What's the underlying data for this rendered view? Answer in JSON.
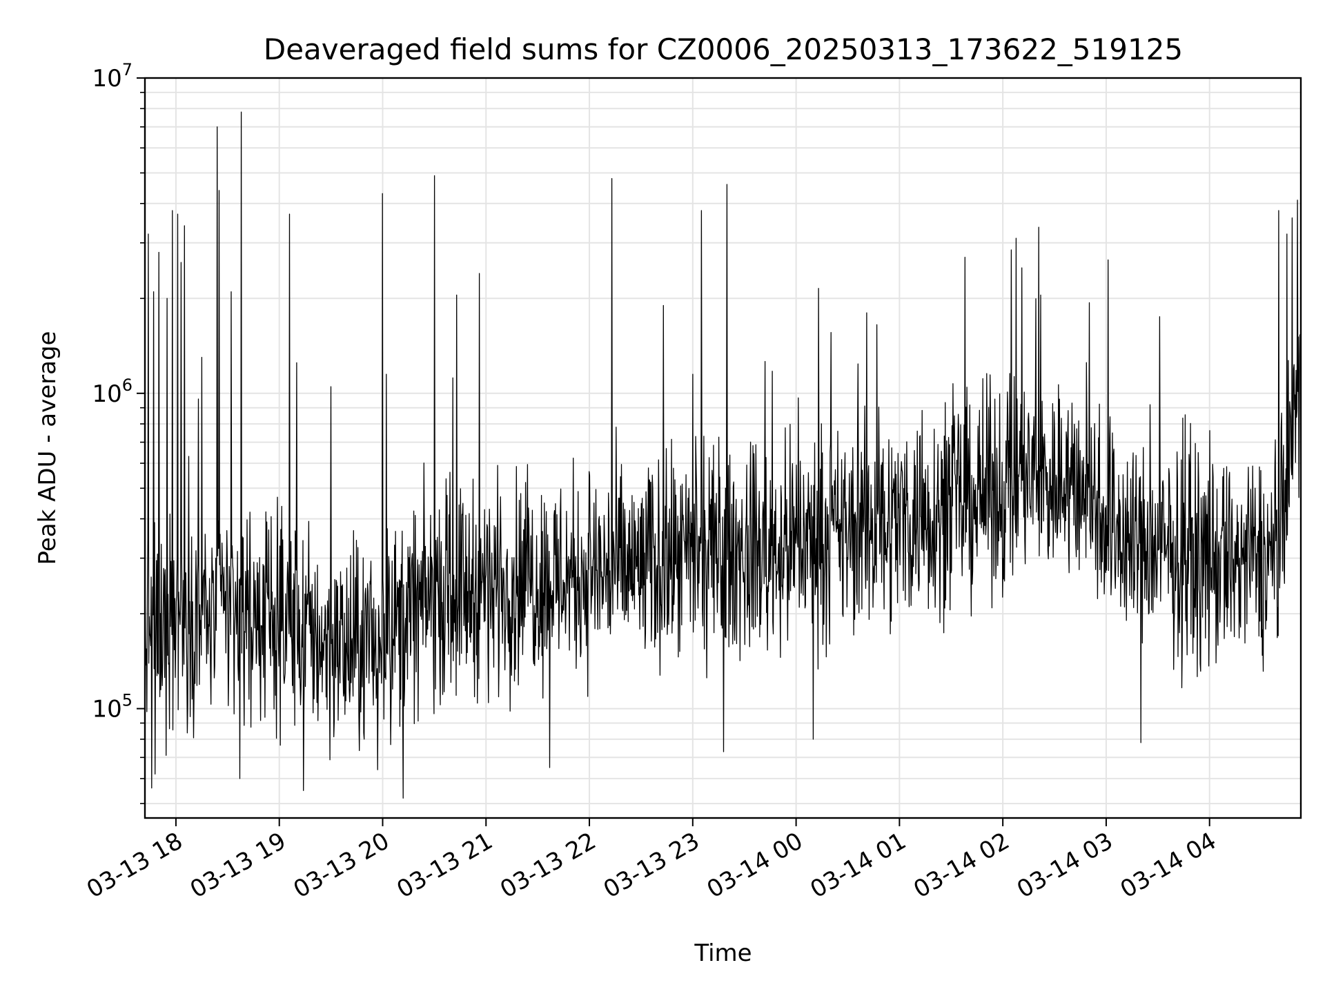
{
  "chart_data": {
    "type": "line",
    "title": "Deaveraged field sums for CZ0006_20250313_173622_519125",
    "xlabel": "Time",
    "ylabel": "Peak ADU - average",
    "yscale": "log",
    "ylim": [
      45000,
      10000000
    ],
    "xlim": [
      "2025-03-13T17:42",
      "2025-03-14T04:53"
    ],
    "grid": true,
    "line_color": "#000000",
    "x_ticks": [
      {
        "t": "2025-03-13T18:00",
        "label": "03-13 18"
      },
      {
        "t": "2025-03-13T19:00",
        "label": "03-13 19"
      },
      {
        "t": "2025-03-13T20:00",
        "label": "03-13 20"
      },
      {
        "t": "2025-03-13T21:00",
        "label": "03-13 21"
      },
      {
        "t": "2025-03-13T22:00",
        "label": "03-13 22"
      },
      {
        "t": "2025-03-13T23:00",
        "label": "03-13 23"
      },
      {
        "t": "2025-03-14T00:00",
        "label": "03-14 00"
      },
      {
        "t": "2025-03-14T01:00",
        "label": "03-14 01"
      },
      {
        "t": "2025-03-14T02:00",
        "label": "03-14 02"
      },
      {
        "t": "2025-03-14T03:00",
        "label": "03-14 03"
      },
      {
        "t": "2025-03-14T04:00",
        "label": "03-14 04"
      }
    ],
    "y_ticks": [
      {
        "v": 100000,
        "base": "10",
        "exp": "5"
      },
      {
        "v": 1000000,
        "base": "10",
        "exp": "6"
      },
      {
        "v": 10000000,
        "base": "10",
        "exp": "7"
      }
    ],
    "baseline": [
      {
        "t": "2025-03-13T17:42",
        "v": 180000
      },
      {
        "t": "2025-03-13T18:30",
        "v": 210000
      },
      {
        "t": "2025-03-13T19:00",
        "v": 190000
      },
      {
        "t": "2025-03-13T19:45",
        "v": 150000
      },
      {
        "t": "2025-03-13T20:30",
        "v": 230000
      },
      {
        "t": "2025-03-13T21:30",
        "v": 260000
      },
      {
        "t": "2025-03-13T22:30",
        "v": 280000
      },
      {
        "t": "2025-03-13T23:30",
        "v": 310000
      },
      {
        "t": "2025-03-14T00:30",
        "v": 360000
      },
      {
        "t": "2025-03-14T01:30",
        "v": 440000
      },
      {
        "t": "2025-03-14T02:15",
        "v": 530000
      },
      {
        "t": "2025-03-14T02:45",
        "v": 520000
      },
      {
        "t": "2025-03-14T03:15",
        "v": 330000
      },
      {
        "t": "2025-03-14T04:00",
        "v": 290000
      },
      {
        "t": "2025-03-14T04:40",
        "v": 300000
      },
      {
        "t": "2025-03-14T04:53",
        "v": 1200000
      }
    ],
    "spikes": [
      {
        "t": "2025-03-13T17:44",
        "v": 3200000
      },
      {
        "t": "2025-03-13T17:47",
        "v": 2100000
      },
      {
        "t": "2025-03-13T17:50",
        "v": 2800000
      },
      {
        "t": "2025-03-13T17:55",
        "v": 2000000
      },
      {
        "t": "2025-03-13T17:58",
        "v": 3800000
      },
      {
        "t": "2025-03-13T18:01",
        "v": 3700000
      },
      {
        "t": "2025-03-13T18:03",
        "v": 2600000
      },
      {
        "t": "2025-03-13T18:05",
        "v": 3400000
      },
      {
        "t": "2025-03-13T18:15",
        "v": 1300000
      },
      {
        "t": "2025-03-13T18:24",
        "v": 7000000
      },
      {
        "t": "2025-03-13T18:25",
        "v": 4400000
      },
      {
        "t": "2025-03-13T18:32",
        "v": 2100000
      },
      {
        "t": "2025-03-13T18:38",
        "v": 7800000
      },
      {
        "t": "2025-03-13T19:06",
        "v": 3700000
      },
      {
        "t": "2025-03-13T19:10",
        "v": 1250000
      },
      {
        "t": "2025-03-13T19:30",
        "v": 1050000
      },
      {
        "t": "2025-03-13T20:00",
        "v": 4300000
      },
      {
        "t": "2025-03-13T20:02",
        "v": 1150000
      },
      {
        "t": "2025-03-13T20:30",
        "v": 4900000
      },
      {
        "t": "2025-03-13T20:43",
        "v": 2050000
      },
      {
        "t": "2025-03-13T20:56",
        "v": 2400000
      },
      {
        "t": "2025-03-13T22:13",
        "v": 4800000
      },
      {
        "t": "2025-03-13T22:43",
        "v": 1900000
      },
      {
        "t": "2025-03-13T23:00",
        "v": 1150000
      },
      {
        "t": "2025-03-13T23:05",
        "v": 3800000
      },
      {
        "t": "2025-03-13T23:20",
        "v": 4600000
      },
      {
        "t": "2025-03-14T00:41",
        "v": 1800000
      },
      {
        "t": "2025-03-14T00:47",
        "v": 1650000
      },
      {
        "t": "2025-03-14T01:38",
        "v": 2700000
      },
      {
        "t": "2025-03-14T02:05",
        "v": 2850000
      },
      {
        "t": "2025-03-14T02:11",
        "v": 2500000
      },
      {
        "t": "2025-03-14T02:22",
        "v": 2050000
      },
      {
        "t": "2025-03-14T03:01",
        "v": 2650000
      },
      {
        "t": "2025-03-14T03:31",
        "v": 1750000
      },
      {
        "t": "2025-03-14T04:40",
        "v": 3800000
      },
      {
        "t": "2025-03-14T04:45",
        "v": 3200000
      },
      {
        "t": "2025-03-14T04:48",
        "v": 3600000
      },
      {
        "t": "2025-03-14T04:51",
        "v": 4100000
      }
    ],
    "dips": [
      {
        "t": "2025-03-13T17:46",
        "v": 56000
      },
      {
        "t": "2025-03-13T17:48",
        "v": 62000
      },
      {
        "t": "2025-03-13T18:37",
        "v": 60000
      },
      {
        "t": "2025-03-13T19:14",
        "v": 55000
      },
      {
        "t": "2025-03-13T19:57",
        "v": 64000
      },
      {
        "t": "2025-03-13T20:12",
        "v": 52000
      },
      {
        "t": "2025-03-13T21:37",
        "v": 65000
      },
      {
        "t": "2025-03-13T23:18",
        "v": 73000
      },
      {
        "t": "2025-03-14T00:10",
        "v": 80000
      },
      {
        "t": "2025-03-14T03:20",
        "v": 78000
      }
    ]
  }
}
